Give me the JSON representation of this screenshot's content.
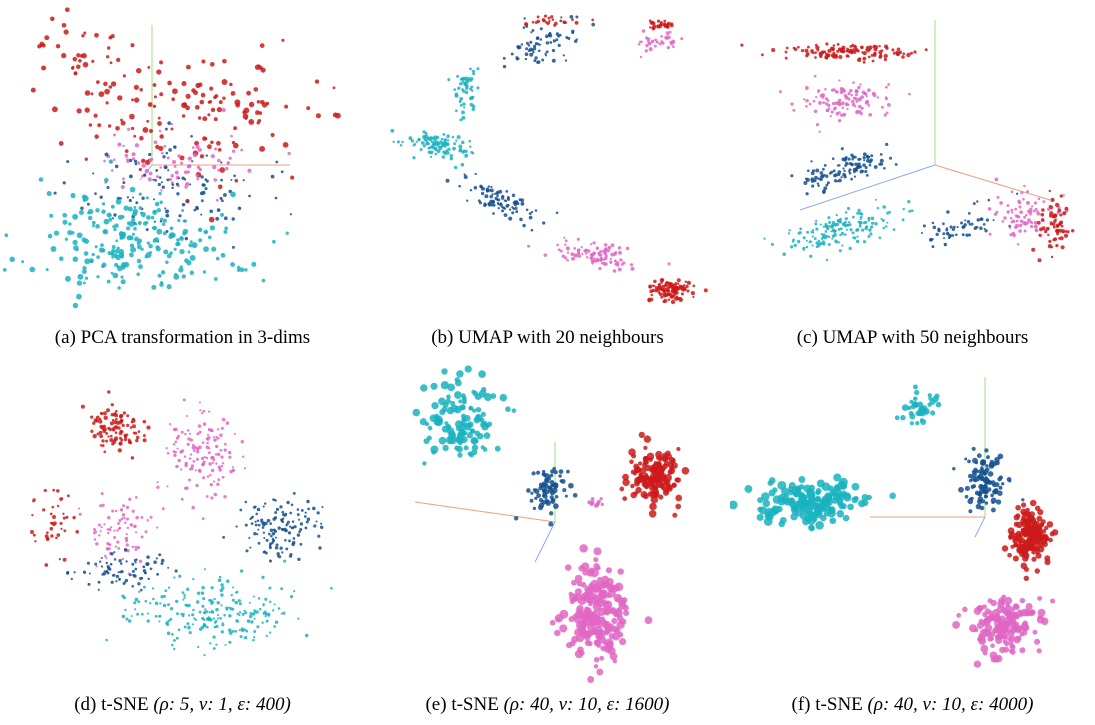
{
  "palette": {
    "red": "#cc1a1a",
    "pink": "#e066c4",
    "navy": "#15508f",
    "teal": "#1ab3bf"
  },
  "panels": [
    {
      "id": "a",
      "label": "(a)",
      "text": "PCA transformation in 3-dims",
      "params": "",
      "axes": "center"
    },
    {
      "id": "b",
      "label": "(b)",
      "text": "UMAP with 20 neighbours",
      "params": "",
      "axes": "none"
    },
    {
      "id": "c",
      "label": "(c)",
      "text": "UMAP with 50 neighbours",
      "params": "",
      "axes": "right"
    },
    {
      "id": "d",
      "label": "(d)",
      "text": "t-SNE",
      "params": "(ρ: 5, ν: 1, ε: 400)",
      "axes": "none"
    },
    {
      "id": "e",
      "label": "(e)",
      "text": "t-SNE",
      "params": "(ρ: 40, ν: 10, ε: 1600)",
      "axes": "center"
    },
    {
      "id": "f",
      "label": "(f)",
      "text": "t-SNE",
      "params": "(ρ: 40, ν: 10, ε: 4000)",
      "axes": "center"
    }
  ]
}
